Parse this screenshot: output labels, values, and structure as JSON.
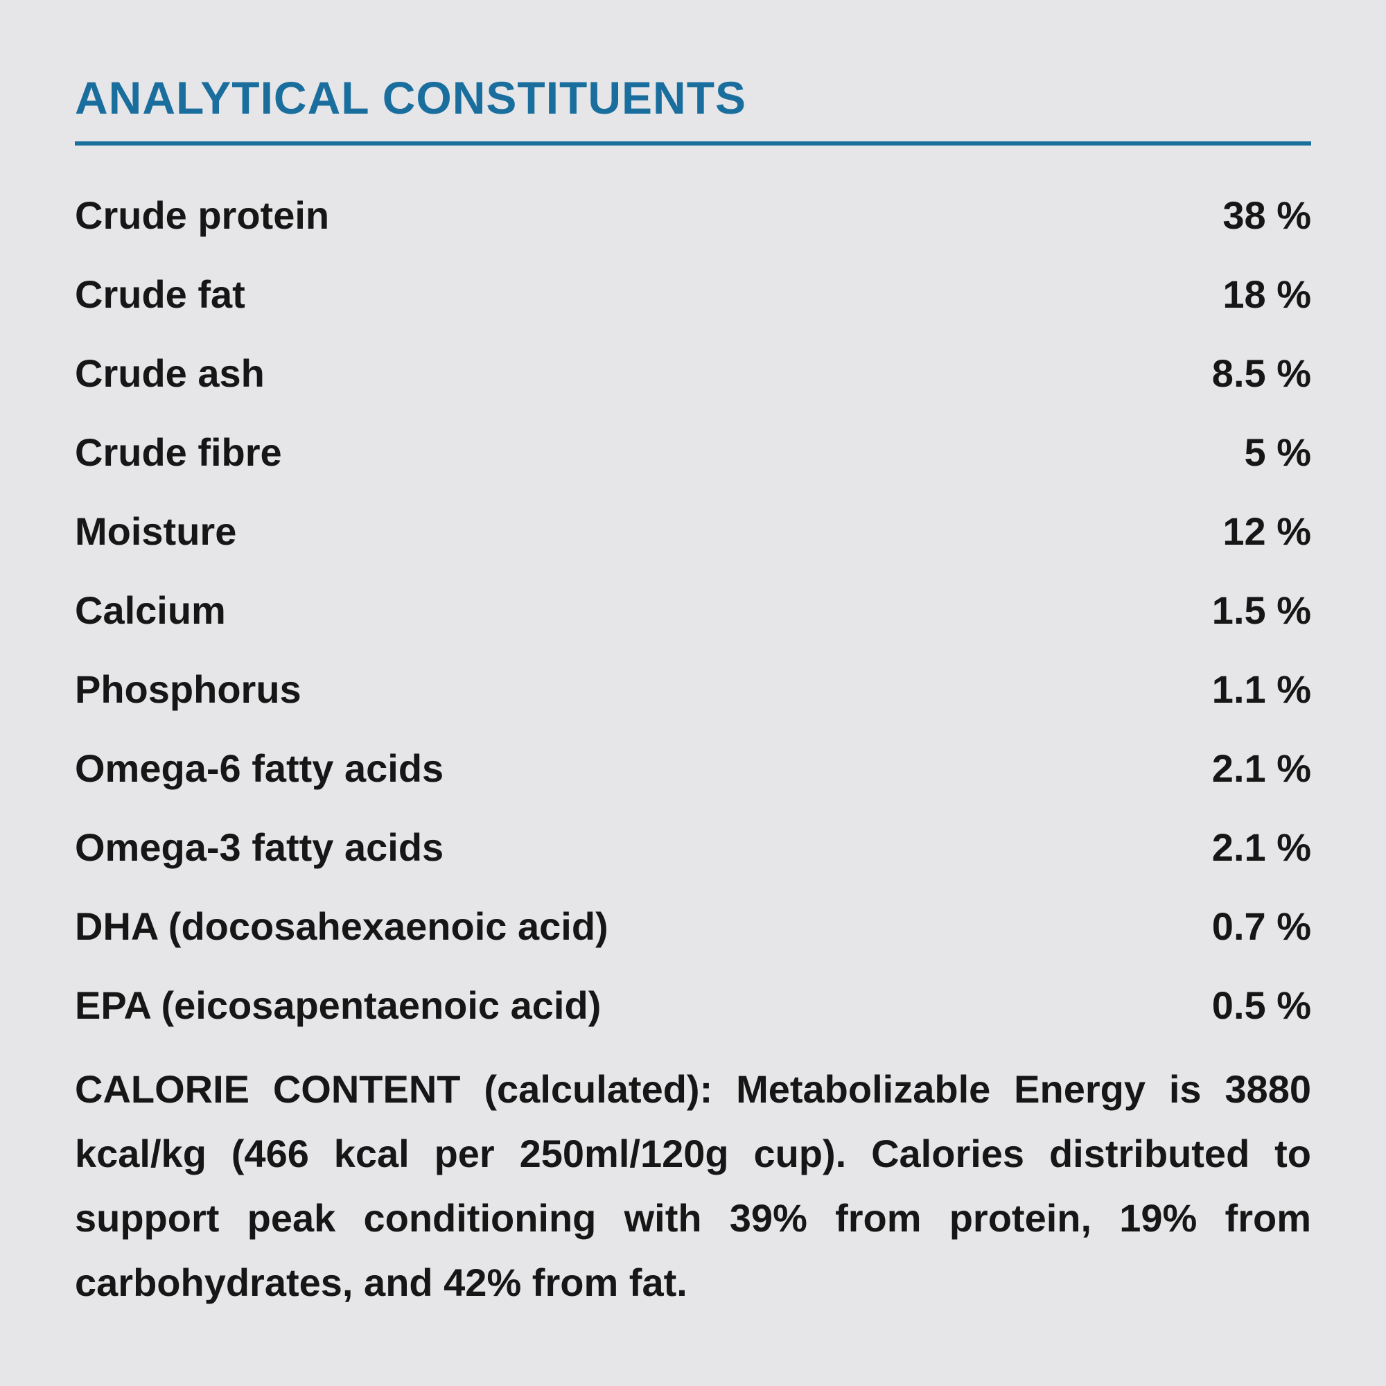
{
  "page": {
    "title": "ANALYTICAL CONSTITUENTS",
    "accent_color": "#1a6e9e",
    "background_color": "#e6e6e8"
  },
  "table": {
    "rows": [
      {
        "label": "Crude protein",
        "value": "38 %"
      },
      {
        "label": "Crude fat",
        "value": "18 %"
      },
      {
        "label": "Crude ash",
        "value": "8.5 %"
      },
      {
        "label": "Crude fibre",
        "value": "5 %"
      },
      {
        "label": "Moisture",
        "value": "12 %"
      },
      {
        "label": "Calcium",
        "value": "1.5 %"
      },
      {
        "label": "Phosphorus",
        "value": "1.1 %"
      },
      {
        "label": "Omega-6 fatty acids",
        "value": "2.1 %"
      },
      {
        "label": "Omega-3 fatty acids",
        "value": "2.1 %"
      },
      {
        "label": "DHA (docosahexaenoic acid)",
        "value": "0.7 %"
      },
      {
        "label": "EPA (eicosapentaenoic acid)",
        "value": "0.5 %"
      }
    ]
  },
  "footer": {
    "calorie_text": "CALORIE CONTENT (calculated): Metabolizable Energy is 3880 kcal/kg (466 kcal per 250ml/120g cup). Calories distributed to support peak conditioning with 39% from protein, 19% from carbohydrates, and 42% from fat."
  }
}
